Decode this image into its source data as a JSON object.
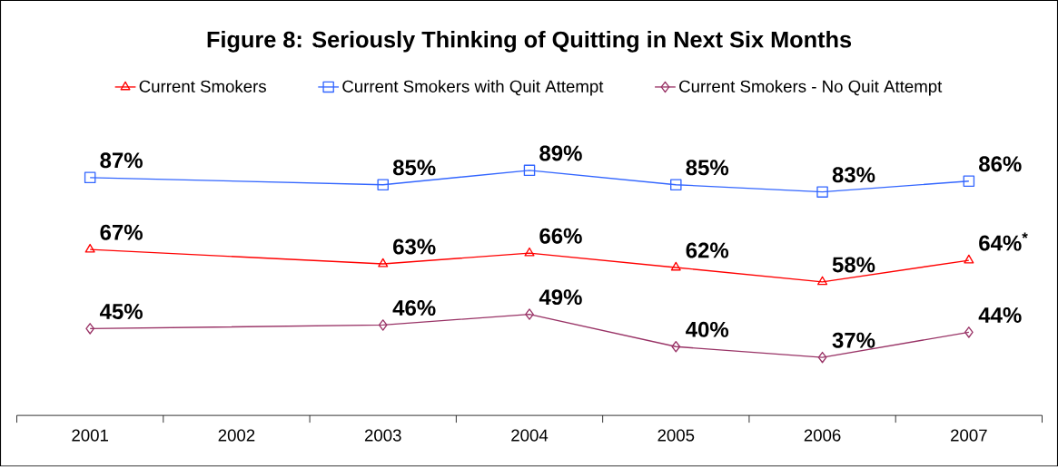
{
  "chart_data": {
    "type": "line",
    "title": "Figure 8:  Seriously Thinking of Quitting in Next Six Months",
    "categories": [
      "2001",
      "2002",
      "2003",
      "2004",
      "2005",
      "2006",
      "2007"
    ],
    "legend": "top",
    "series": [
      {
        "name": "Current Smokers",
        "color": "#ff0000",
        "marker": "triangle",
        "values": [
          67,
          null,
          63,
          66,
          62,
          58,
          64
        ],
        "value_labels": [
          "67%",
          null,
          "63%",
          "66%",
          "62%",
          "58%",
          "64%$^{*}$"
        ]
      },
      {
        "name": "Current Smokers with Quit Attempt",
        "color": "#3366ff",
        "marker": "square",
        "values": [
          87,
          null,
          85,
          89,
          85,
          83,
          86
        ],
        "value_labels": [
          "87%",
          null,
          "85%",
          "89%",
          "85%",
          "83%",
          "86%"
        ]
      },
      {
        "name": "Current Smokers - No Quit Attempt",
        "color": "#993366",
        "marker": "diamond",
        "values": [
          45,
          null,
          46,
          49,
          40,
          37,
          44
        ],
        "value_labels": [
          "45%",
          null,
          "46%",
          "49%",
          "40%",
          "37%",
          "44%"
        ]
      }
    ]
  }
}
